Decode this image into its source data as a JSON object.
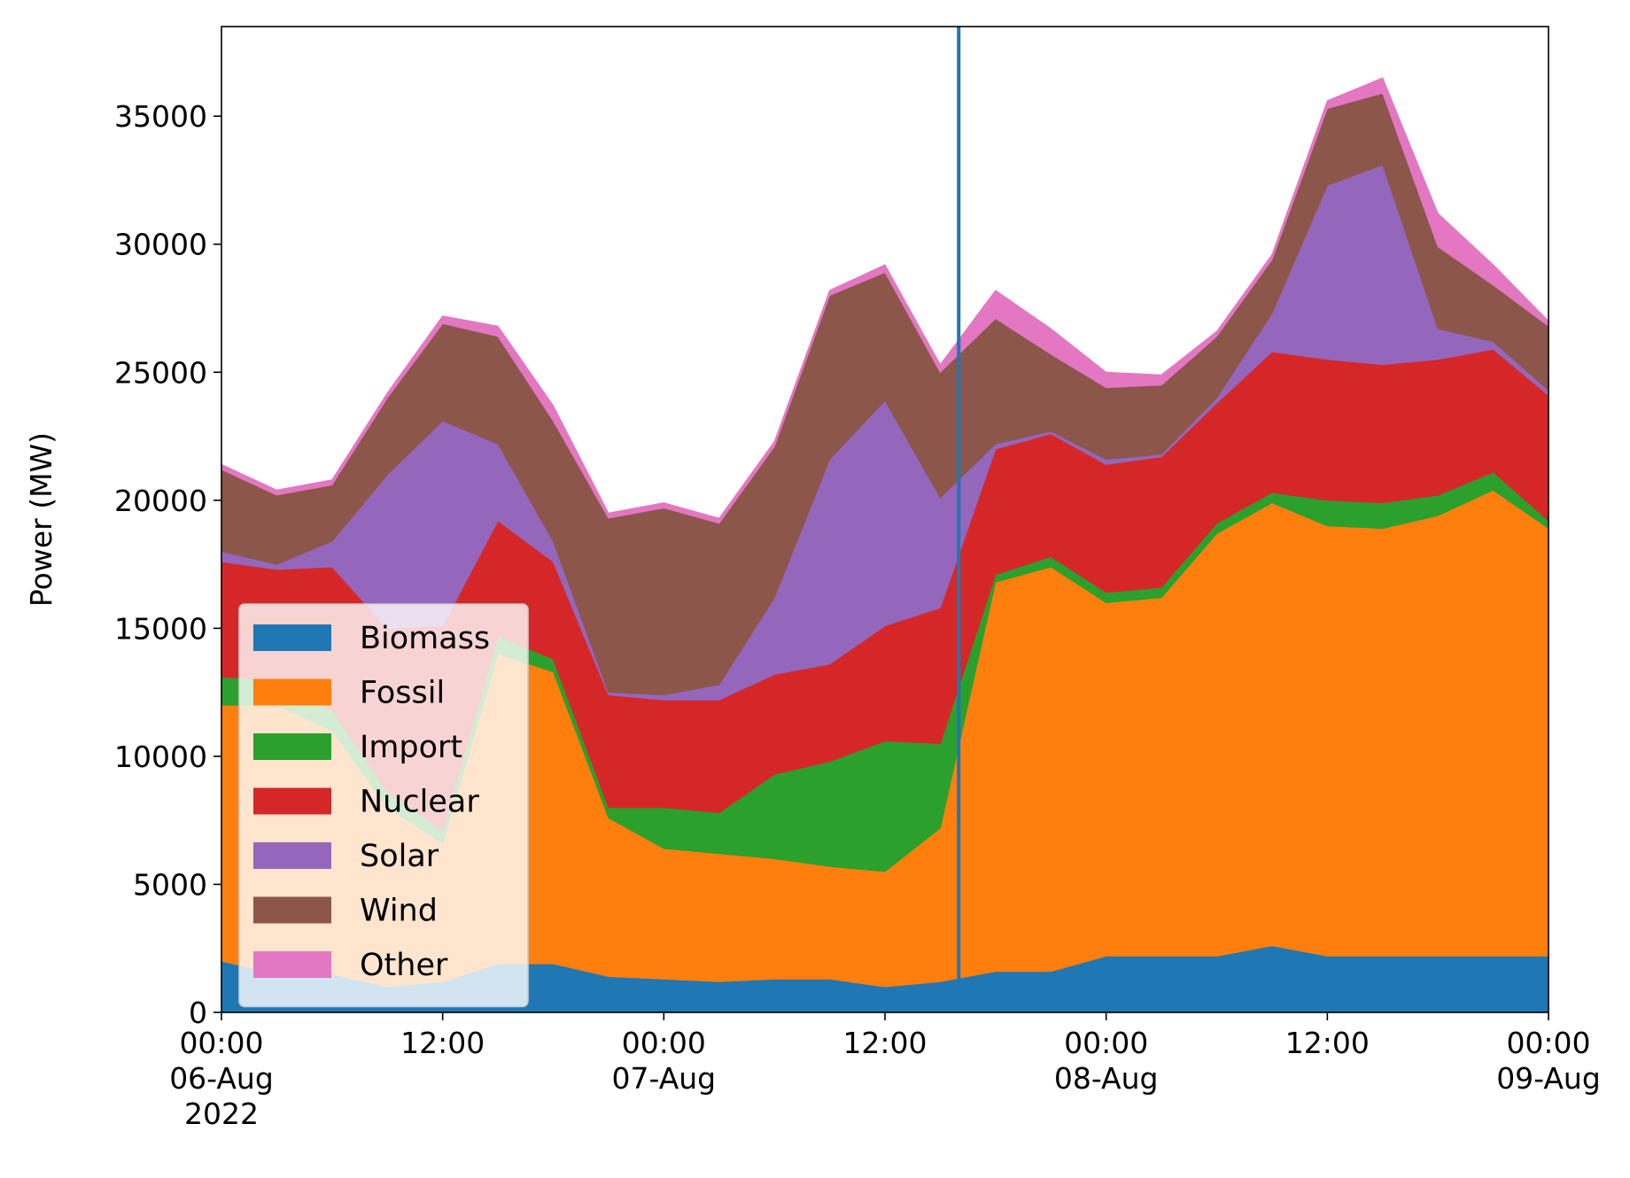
{
  "chart_data": {
    "type": "area",
    "stacked": true,
    "title": "",
    "xlabel": "",
    "ylabel": "Power (MW)",
    "x_start": "2022-08-06 00:00",
    "x_end": "2022-08-09 00:00",
    "sample_interval_hours": 3,
    "xlim": [
      "2022-08-06 00:00",
      "2022-08-09 00:00"
    ],
    "ylim": [
      0,
      38500
    ],
    "y_ticks": [
      0,
      5000,
      10000,
      15000,
      20000,
      25000,
      30000,
      35000
    ],
    "x_ticks": [
      {
        "hours": 0,
        "lines": [
          "00:00",
          "06-Aug",
          "2022"
        ]
      },
      {
        "hours": 12,
        "lines": [
          "12:00"
        ]
      },
      {
        "hours": 24,
        "lines": [
          "00:00",
          "07-Aug"
        ]
      },
      {
        "hours": 36,
        "lines": [
          "12:00"
        ]
      },
      {
        "hours": 48,
        "lines": [
          "00:00",
          "08-Aug"
        ]
      },
      {
        "hours": 60,
        "lines": [
          "12:00"
        ]
      },
      {
        "hours": 72,
        "lines": [
          "00:00",
          "09-Aug"
        ]
      }
    ],
    "grid": false,
    "legend": {
      "position": "lower-left",
      "alpha": 0.8
    },
    "vline": {
      "time": "2022-08-07 16:00",
      "color": "#1f77b4"
    },
    "series": [
      {
        "name": "Biomass",
        "color": "#1f77b4",
        "values": [
          2000,
          1500,
          1500,
          1000,
          1200,
          1900,
          1900,
          1400,
          1300,
          1200,
          1300,
          1300,
          1000,
          1200,
          1600,
          1600,
          2200,
          2200,
          2200,
          2600,
          2200,
          2200,
          2200,
          2200,
          2200
        ]
      },
      {
        "name": "Fossil",
        "color": "#ff7f0e",
        "values": [
          10000,
          10500,
          9500,
          7000,
          5400,
          12100,
          11400,
          6200,
          5100,
          5000,
          4700,
          4400,
          4500,
          6000,
          15200,
          15800,
          13800,
          14000,
          16500,
          17300,
          16800,
          16700,
          17200,
          18200,
          16700
        ]
      },
      {
        "name": "Import",
        "color": "#2ca02c",
        "values": [
          1100,
          1000,
          800,
          600,
          500,
          700,
          500,
          400,
          1600,
          1600,
          3300,
          4100,
          5100,
          3300,
          300,
          400,
          400,
          400,
          400,
          400,
          1000,
          1000,
          800,
          700,
          300
        ]
      },
      {
        "name": "Nuclear",
        "color": "#d62728",
        "values": [
          4500,
          4300,
          5600,
          6400,
          8000,
          4500,
          3800,
          4400,
          4200,
          4400,
          3900,
          3800,
          4500,
          5300,
          4900,
          4800,
          5000,
          5100,
          4700,
          5500,
          5500,
          5400,
          5300,
          4800,
          4900
        ]
      },
      {
        "name": "Solar",
        "color": "#9467bd",
        "values": [
          400,
          200,
          1000,
          6000,
          8000,
          3000,
          800,
          100,
          200,
          600,
          3000,
          8000,
          8800,
          4300,
          200,
          100,
          200,
          100,
          200,
          1500,
          6800,
          7800,
          1200,
          300,
          200
        ]
      },
      {
        "name": "Wind",
        "color": "#8c564b",
        "values": [
          3200,
          2700,
          2200,
          3000,
          3800,
          4200,
          4700,
          6800,
          7300,
          6300,
          5900,
          6400,
          5000,
          4900,
          4900,
          3000,
          2800,
          2700,
          2400,
          2100,
          3000,
          2800,
          3200,
          2200,
          2500
        ]
      },
      {
        "name": "Other",
        "color": "#e377c2",
        "values": [
          200,
          200,
          200,
          200,
          300,
          400,
          600,
          200,
          200,
          200,
          200,
          200,
          300,
          300,
          1100,
          1000,
          600,
          400,
          200,
          200,
          300,
          600,
          1300,
          800,
          200
        ]
      }
    ]
  }
}
